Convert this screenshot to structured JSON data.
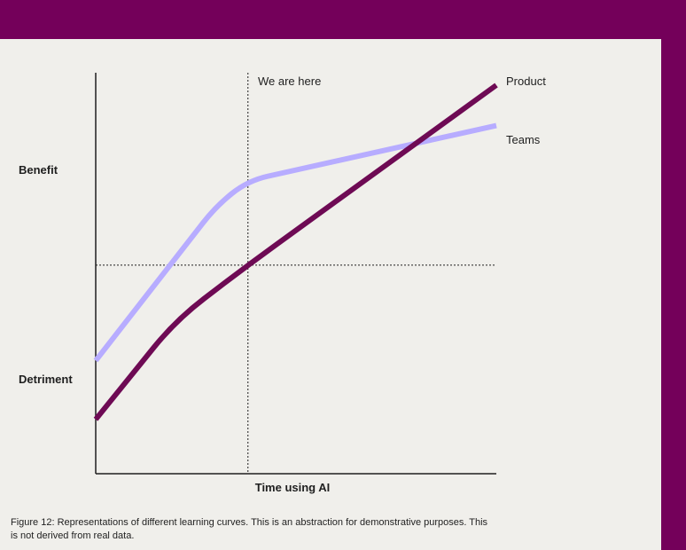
{
  "chart_data": {
    "type": "line",
    "title": "",
    "xlabel": "Time using AI",
    "y_categories": [
      "Benefit",
      "Detriment"
    ],
    "marker": {
      "label": "We are here",
      "x": 0.38
    },
    "reference_y": 0.51,
    "x_range": [
      0,
      1
    ],
    "y_range": [
      0,
      1
    ],
    "grid": false,
    "series": [
      {
        "name": "Product",
        "color": "#6e0a54",
        "x": [
          0,
          0.2,
          0.38,
          1
        ],
        "y": [
          0.09,
          0.36,
          0.51,
          1.0
        ]
      },
      {
        "name": "Teams",
        "color": "#b7acff",
        "x": [
          0,
          0.3,
          0.38,
          1
        ],
        "y": [
          0.25,
          0.67,
          0.74,
          0.89
        ]
      }
    ]
  },
  "caption": "Figure 12: Representations of different learning curves. This is an abstraction for demonstrative purposes. This is not derived from real data."
}
